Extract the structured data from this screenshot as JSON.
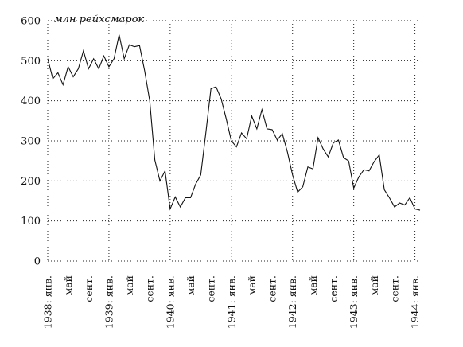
{
  "chart_data": {
    "type": "line",
    "ylabel": "млн рейхсмарок",
    "ylim": [
      0,
      600
    ],
    "y_ticks": [
      "0",
      "100",
      "200",
      "300",
      "400",
      "500",
      "600"
    ],
    "x_ticks": [
      {
        "label": "1938: янв.",
        "index": 0
      },
      {
        "label": "май",
        "index": 4
      },
      {
        "label": "сент.",
        "index": 8
      },
      {
        "label": "1939: янв.",
        "index": 12
      },
      {
        "label": "май",
        "index": 16
      },
      {
        "label": "сент.",
        "index": 20
      },
      {
        "label": "1940: янв.",
        "index": 24
      },
      {
        "label": "май",
        "index": 28
      },
      {
        "label": "сент.",
        "index": 32
      },
      {
        "label": "1941: янв.",
        "index": 36
      },
      {
        "label": "май",
        "index": 40
      },
      {
        "label": "сент.",
        "index": 44
      },
      {
        "label": "1942: янв.",
        "index": 48
      },
      {
        "label": "май",
        "index": 52
      },
      {
        "label": "сент.",
        "index": 56
      },
      {
        "label": "1943: янв.",
        "index": 60
      },
      {
        "label": "май",
        "index": 64
      },
      {
        "label": "сент.",
        "index": 68
      },
      {
        "label": "1944: янв.",
        "index": 72
      }
    ],
    "grid": true,
    "series": [
      {
        "values": [
          505,
          455,
          470,
          440,
          485,
          460,
          480,
          525,
          480,
          505,
          480,
          512,
          485,
          505,
          565,
          505,
          540,
          535,
          538,
          475,
          400,
          252,
          200,
          225,
          130,
          160,
          135,
          158,
          158,
          192,
          215,
          320,
          430,
          435,
          405,
          355,
          300,
          285,
          320,
          305,
          362,
          330,
          378,
          330,
          328,
          302,
          318,
          272,
          215,
          172,
          185,
          235,
          230,
          308,
          280,
          260,
          295,
          302,
          258,
          250,
          182,
          210,
          228,
          225,
          248,
          265,
          178,
          158,
          135,
          145,
          140,
          158,
          130,
          127
        ]
      }
    ]
  }
}
